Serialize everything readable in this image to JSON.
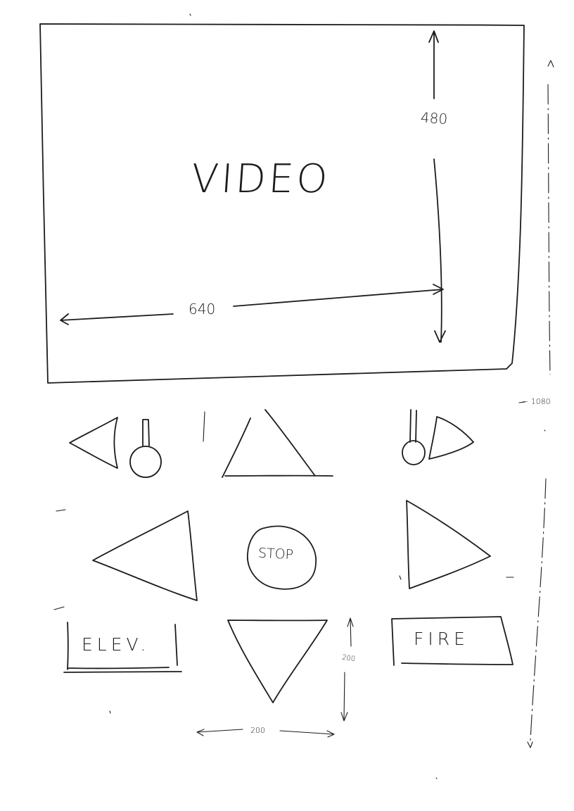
{
  "video": {
    "label": "VIDEO",
    "width_label": "640",
    "height_label": "480"
  },
  "screen": {
    "height_label": "~ 1080"
  },
  "controls": {
    "stop_label": "STOP",
    "elevation_label": "ELEV.",
    "fire_label": "FIRE",
    "button_width_label": "200",
    "button_height_label": "200"
  }
}
